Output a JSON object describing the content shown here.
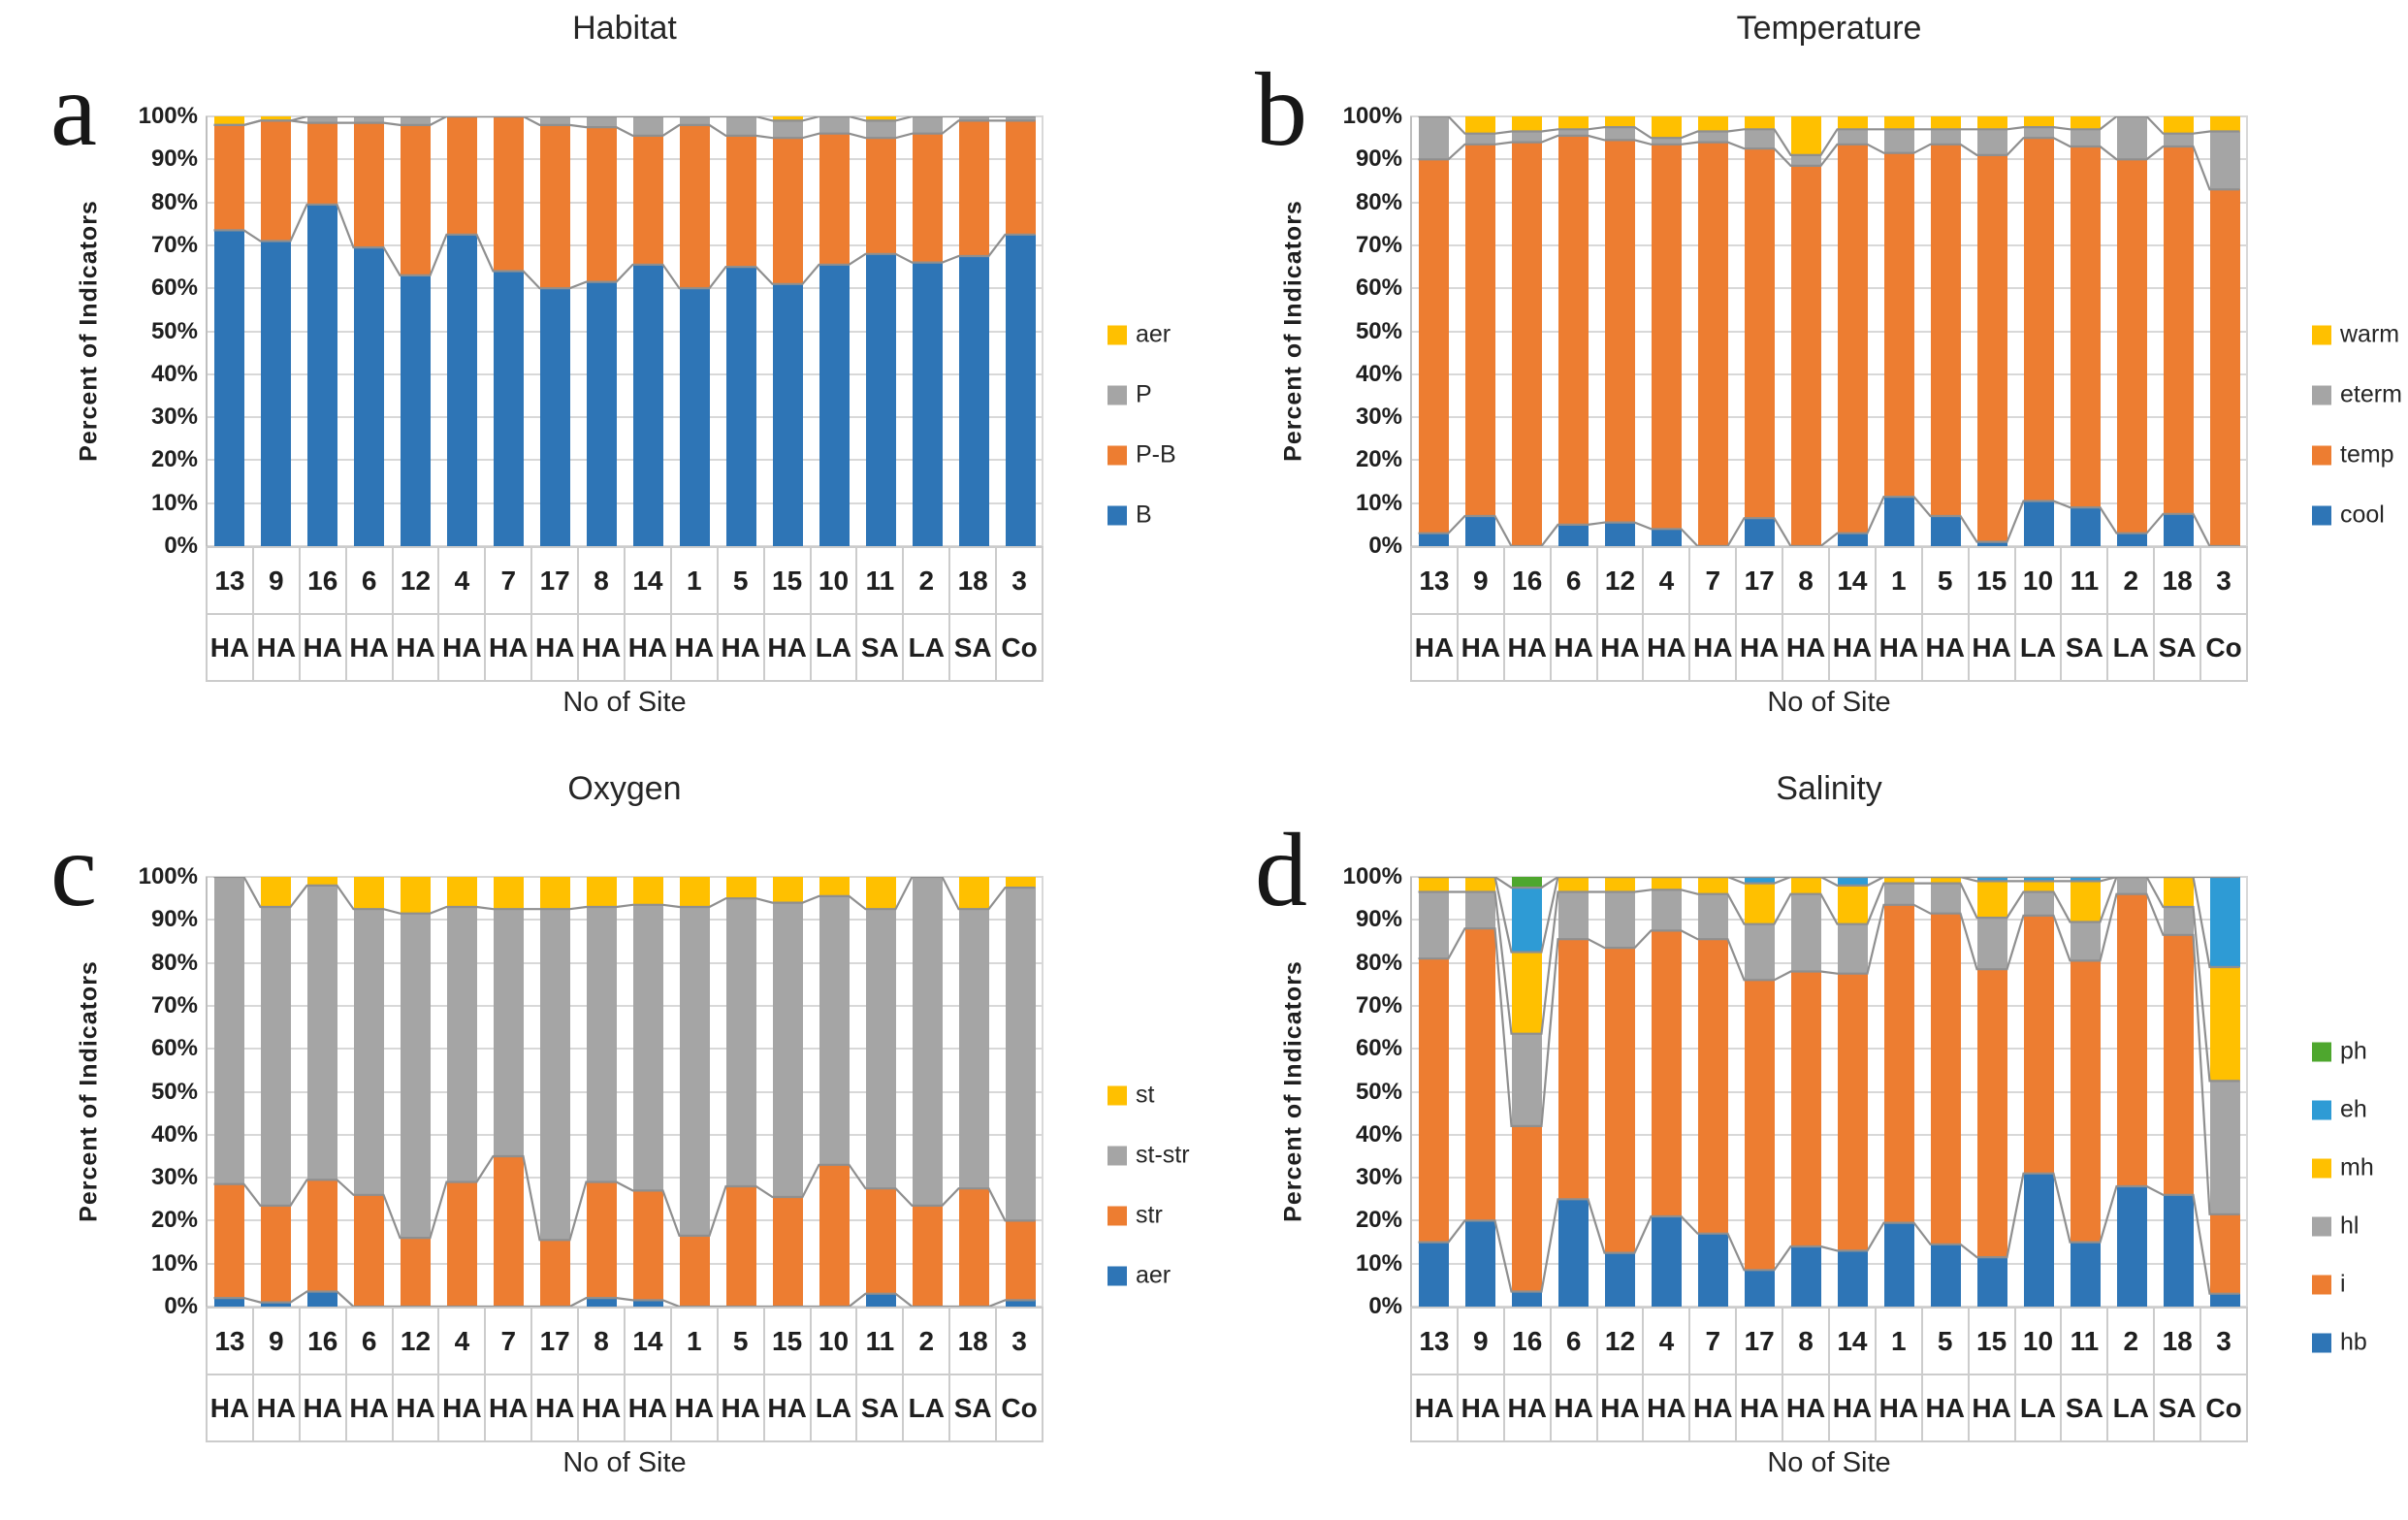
{
  "figure": {
    "ylabel": "Percent of Indicators",
    "xlabel": "No of Site",
    "y_ticks": [
      "0%",
      "10%",
      "20%",
      "30%",
      "40%",
      "50%",
      "60%",
      "70%",
      "80%",
      "90%",
      "100%"
    ],
    "palette": {
      "blue": "#2E75B6",
      "orange": "#ED7D31",
      "gray": "#A5A5A5",
      "yellow": "#FFC000",
      "lightblue": "#2E9BD5",
      "green": "#4EA72E",
      "gridline": "#D8D8D8",
      "series_line": "#8F8F8F"
    }
  },
  "chart_data": [
    {
      "panel": "a",
      "title": "Habitat",
      "type": "bar",
      "stacked": true,
      "ylim": [
        0,
        100
      ],
      "xlabel": "No of Site",
      "ylabel": "Percent of Indicators",
      "legend_position": "right",
      "legend_top_to_bottom": [
        "aer",
        "P",
        "P-B",
        "B"
      ],
      "categories": [
        "13",
        "9",
        "16",
        "6",
        "12",
        "4",
        "7",
        "17",
        "8",
        "14",
        "1",
        "5",
        "15",
        "10",
        "11",
        "2",
        "18",
        "3"
      ],
      "site_types": [
        "HA",
        "HA",
        "HA",
        "HA",
        "HA",
        "HA",
        "HA",
        "HA",
        "HA",
        "HA",
        "HA",
        "HA",
        "HA",
        "LA",
        "SA",
        "LA",
        "SA",
        "Co"
      ],
      "series": [
        {
          "name": "B",
          "color": "#2E75B6",
          "values": [
            73.5,
            71,
            79.5,
            69.5,
            63,
            72.5,
            64,
            60,
            61.5,
            65.5,
            60,
            65,
            61,
            65.5,
            68,
            66,
            67.5,
            72.5
          ]
        },
        {
          "name": "P-B",
          "color": "#ED7D31",
          "values": [
            24.5,
            28,
            19,
            29,
            35,
            27.5,
            36,
            38,
            36,
            30,
            38,
            30.5,
            34,
            30.5,
            27,
            30,
            31.5,
            26.5
          ]
        },
        {
          "name": "P",
          "color": "#A5A5A5",
          "values": [
            0,
            0,
            1.5,
            1.5,
            2,
            0,
            0,
            2,
            2.5,
            4.5,
            2,
            4.5,
            4,
            4,
            4,
            4,
            1,
            1
          ]
        },
        {
          "name": "aer",
          "color": "#FFC000",
          "values": [
            2,
            1,
            0,
            0,
            0,
            0,
            0,
            0,
            0,
            0,
            0,
            0,
            1,
            0,
            1,
            0,
            0,
            0
          ]
        }
      ]
    },
    {
      "panel": "b",
      "title": "Temperature",
      "type": "bar",
      "stacked": true,
      "ylim": [
        0,
        100
      ],
      "xlabel": "No of Site",
      "ylabel": "Percent of Indicators",
      "legend_position": "right",
      "legend_top_to_bottom": [
        "warm",
        "eterm",
        "temp",
        "cool"
      ],
      "categories": [
        "13",
        "9",
        "16",
        "6",
        "12",
        "4",
        "7",
        "17",
        "8",
        "14",
        "1",
        "5",
        "15",
        "10",
        "11",
        "2",
        "18",
        "3"
      ],
      "site_types": [
        "HA",
        "HA",
        "HA",
        "HA",
        "HA",
        "HA",
        "HA",
        "HA",
        "HA",
        "HA",
        "HA",
        "HA",
        "HA",
        "LA",
        "SA",
        "LA",
        "SA",
        "Co"
      ],
      "series": [
        {
          "name": "cool",
          "color": "#2E75B6",
          "values": [
            3,
            7,
            0,
            5,
            5.5,
            4,
            0,
            6.5,
            0,
            3,
            11.5,
            7,
            1,
            10.5,
            9,
            3,
            7.5,
            0
          ]
        },
        {
          "name": "temp",
          "color": "#ED7D31",
          "values": [
            87,
            86.5,
            94,
            90.5,
            89,
            89.5,
            94,
            86,
            88.5,
            90.5,
            80,
            86.5,
            90,
            84.5,
            84,
            87,
            85.5,
            83
          ]
        },
        {
          "name": "eterm",
          "color": "#A5A5A5",
          "values": [
            10,
            2.5,
            2.5,
            1.5,
            3,
            1.5,
            2.5,
            4.5,
            2.5,
            3.5,
            5.5,
            3.5,
            6,
            2.5,
            4,
            10,
            3,
            13.5
          ]
        },
        {
          "name": "warm",
          "color": "#FFC000",
          "values": [
            0,
            4,
            3.5,
            3,
            2.5,
            5,
            3.5,
            3,
            9,
            3,
            3,
            3,
            3,
            2.5,
            3,
            0,
            4,
            3.5
          ]
        }
      ]
    },
    {
      "panel": "c",
      "title": "Oxygen",
      "type": "bar",
      "stacked": true,
      "ylim": [
        0,
        100
      ],
      "xlabel": "No of Site",
      "ylabel": "Percent of Indicators",
      "legend_position": "right",
      "legend_top_to_bottom": [
        "st",
        "st-str",
        "str",
        "aer"
      ],
      "categories": [
        "13",
        "9",
        "16",
        "6",
        "12",
        "4",
        "7",
        "17",
        "8",
        "14",
        "1",
        "5",
        "15",
        "10",
        "11",
        "2",
        "18",
        "3"
      ],
      "site_types": [
        "HA",
        "HA",
        "HA",
        "HA",
        "HA",
        "HA",
        "HA",
        "HA",
        "HA",
        "HA",
        "HA",
        "HA",
        "HA",
        "LA",
        "SA",
        "LA",
        "SA",
        "Co"
      ],
      "series": [
        {
          "name": "aer",
          "color": "#2E75B6",
          "values": [
            2,
            1,
            3.5,
            0,
            0,
            0,
            0,
            0,
            2,
            1.5,
            0,
            0,
            0,
            0,
            3,
            0,
            0,
            1.5
          ]
        },
        {
          "name": "str",
          "color": "#ED7D31",
          "values": [
            26.5,
            22.5,
            26,
            26,
            16,
            29,
            35,
            15.5,
            27,
            25.5,
            16.5,
            28,
            25.5,
            33,
            24.5,
            23.5,
            27.5,
            18.5
          ]
        },
        {
          "name": "st-str",
          "color": "#A5A5A5",
          "values": [
            71.5,
            69.5,
            68.5,
            66.5,
            75.5,
            64,
            57.5,
            77,
            64,
            66.5,
            76.5,
            67,
            68.5,
            62.5,
            65,
            76.5,
            65,
            77.5
          ]
        },
        {
          "name": "st",
          "color": "#FFC000",
          "values": [
            0,
            7,
            2,
            7.5,
            8.5,
            7,
            7.5,
            7.5,
            7,
            6.5,
            7,
            5,
            6,
            4.5,
            7.5,
            0,
            7.5,
            2.5
          ]
        }
      ]
    },
    {
      "panel": "d",
      "title": "Salinity",
      "type": "bar",
      "stacked": true,
      "ylim": [
        0,
        100
      ],
      "xlabel": "No of Site",
      "ylabel": "Percent of Indicators",
      "legend_position": "right",
      "legend_top_to_bottom": [
        "ph",
        "eh",
        "mh",
        "hl",
        "i",
        "hb"
      ],
      "categories": [
        "13",
        "9",
        "16",
        "6",
        "12",
        "4",
        "7",
        "17",
        "8",
        "14",
        "1",
        "5",
        "15",
        "10",
        "11",
        "2",
        "18",
        "3"
      ],
      "site_types": [
        "HA",
        "HA",
        "HA",
        "HA",
        "HA",
        "HA",
        "HA",
        "HA",
        "HA",
        "HA",
        "HA",
        "HA",
        "HA",
        "LA",
        "SA",
        "LA",
        "SA",
        "Co"
      ],
      "series": [
        {
          "name": "hb",
          "color": "#2E75B6",
          "values": [
            15,
            20,
            3.5,
            25,
            12.5,
            21,
            17,
            8.5,
            14,
            13,
            19.5,
            14.5,
            11.5,
            31,
            15,
            28,
            26,
            3
          ]
        },
        {
          "name": "i",
          "color": "#ED7D31",
          "values": [
            66,
            68,
            38.5,
            60.5,
            71,
            66.5,
            68.5,
            67.5,
            64,
            64.5,
            74,
            77,
            67,
            60,
            65.5,
            68,
            60.5,
            18.5
          ]
        },
        {
          "name": "hl",
          "color": "#A5A5A5",
          "values": [
            15.5,
            8.5,
            21.5,
            11,
            13,
            9.5,
            10.5,
            13,
            18,
            11.5,
            5,
            7,
            12,
            5.5,
            9,
            4,
            6.5,
            31
          ]
        },
        {
          "name": "mh",
          "color": "#FFC000",
          "values": [
            3.5,
            3.5,
            19,
            3.5,
            3.5,
            3,
            4,
            9.5,
            4,
            9,
            1.5,
            1.5,
            8.5,
            2.5,
            9.5,
            0,
            7,
            26.5
          ]
        },
        {
          "name": "eh",
          "color": "#2E9BD5",
          "values": [
            0,
            0,
            15,
            0,
            0,
            0,
            0,
            1.5,
            0,
            2,
            0,
            0,
            1,
            1,
            1,
            0,
            0,
            21
          ]
        },
        {
          "name": "ph",
          "color": "#4EA72E",
          "values": [
            0,
            0,
            2.5,
            0,
            0,
            0,
            0,
            0,
            0,
            0,
            0,
            0,
            0,
            0,
            0,
            0,
            0,
            0
          ]
        }
      ]
    }
  ]
}
